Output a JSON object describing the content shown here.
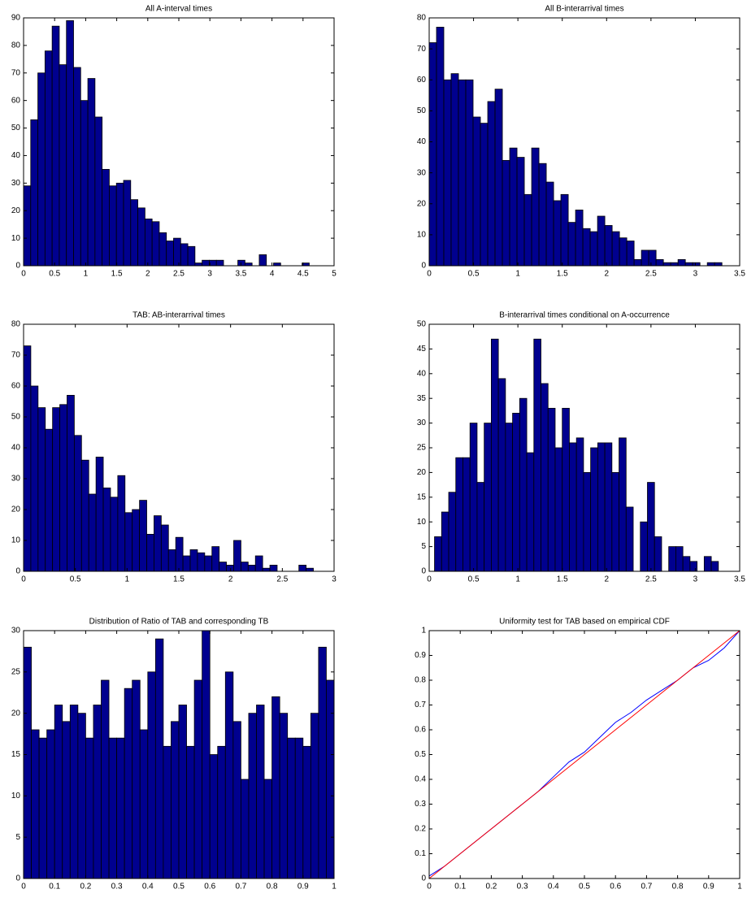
{
  "chart_data": [
    {
      "type": "histogram",
      "title": "All A-interval times",
      "color": "#00008f",
      "bins": [
        0,
        0.115,
        0.23,
        0.345,
        0.46,
        0.575,
        0.69,
        0.805,
        0.92,
        1.035,
        1.15,
        1.265,
        1.38,
        1.495,
        1.61,
        1.725,
        1.84,
        1.955,
        2.07,
        2.185,
        2.3,
        2.415,
        2.53,
        2.645,
        2.76,
        2.875,
        2.99,
        3.105,
        3.22,
        3.335,
        3.45,
        3.565,
        3.68,
        3.795,
        3.91,
        4.025,
        4.14,
        4.255,
        4.37,
        4.485,
        4.6
      ],
      "values": [
        29,
        53,
        70,
        78,
        87,
        73,
        89,
        72,
        60,
        68,
        54,
        35,
        29,
        30,
        31,
        24,
        21,
        17,
        16,
        12,
        9,
        10,
        8,
        7,
        1,
        2,
        2,
        2,
        0,
        0,
        2,
        1,
        0,
        4,
        0,
        1,
        0,
        0,
        0,
        1
      ],
      "xlim": [
        0,
        5
      ],
      "xticks": [
        0,
        0.5,
        1,
        1.5,
        2,
        2.5,
        3,
        3.5,
        4,
        4.5,
        5
      ],
      "ylim": [
        0,
        90
      ],
      "yticks": [
        0,
        10,
        20,
        30,
        40,
        50,
        60,
        70,
        80,
        90
      ]
    },
    {
      "type": "histogram",
      "title": "All B-interarrival times",
      "color": "#00008f",
      "bins": [
        0,
        0.0825,
        0.165,
        0.2475,
        0.33,
        0.4125,
        0.495,
        0.5775,
        0.66,
        0.7425,
        0.825,
        0.9075,
        0.99,
        1.0725,
        1.155,
        1.2375,
        1.32,
        1.4025,
        1.485,
        1.5675,
        1.65,
        1.7325,
        1.815,
        1.8975,
        1.98,
        2.0625,
        2.145,
        2.2275,
        2.31,
        2.3925,
        2.475,
        2.5575,
        2.64,
        2.7225,
        2.805,
        2.8875,
        2.97,
        3.0525,
        3.135,
        3.2175,
        3.3
      ],
      "values": [
        72,
        77,
        60,
        62,
        60,
        60,
        48,
        46,
        53,
        57,
        34,
        38,
        35,
        23,
        38,
        33,
        27,
        21,
        23,
        14,
        18,
        12,
        11,
        16,
        13,
        11,
        9,
        8,
        2,
        5,
        5,
        2,
        1,
        1,
        2,
        1,
        1,
        0,
        1,
        1
      ],
      "xlim": [
        0,
        3.5
      ],
      "xticks": [
        0,
        0.5,
        1,
        1.5,
        2,
        2.5,
        3,
        3.5
      ],
      "ylim": [
        0,
        80
      ],
      "yticks": [
        0,
        10,
        20,
        30,
        40,
        50,
        60,
        70,
        80
      ]
    },
    {
      "type": "histogram",
      "title": "TAB: AB-interarrival times",
      "color": "#00008f",
      "bins": [
        0,
        0.07,
        0.14,
        0.21,
        0.28,
        0.35,
        0.42,
        0.49,
        0.56,
        0.63,
        0.7,
        0.77,
        0.84,
        0.91,
        0.98,
        1.05,
        1.12,
        1.19,
        1.26,
        1.33,
        1.4,
        1.47,
        1.54,
        1.61,
        1.68,
        1.75,
        1.82,
        1.89,
        1.96,
        2.03,
        2.1,
        2.17,
        2.24,
        2.31,
        2.38,
        2.45,
        2.52,
        2.59,
        2.66,
        2.73,
        2.8
      ],
      "values": [
        73,
        60,
        53,
        46,
        53,
        54,
        57,
        44,
        36,
        25,
        37,
        27,
        24,
        31,
        19,
        20,
        23,
        12,
        18,
        15,
        7,
        11,
        5,
        7,
        6,
        5,
        8,
        3,
        2,
        10,
        3,
        2,
        5,
        1,
        2,
        0,
        0,
        0,
        2,
        1
      ],
      "xlim": [
        0,
        3
      ],
      "xticks": [
        0,
        0.5,
        1,
        1.5,
        2,
        2.5,
        3
      ],
      "ylim": [
        0,
        80
      ],
      "yticks": [
        0,
        10,
        20,
        30,
        40,
        50,
        60,
        70,
        80
      ]
    },
    {
      "type": "histogram",
      "title": "B-interarrival times conditional on A-occurrence",
      "color": "#00008f",
      "bins": [
        0.06,
        0.14,
        0.22,
        0.3,
        0.38,
        0.46,
        0.54,
        0.62,
        0.7,
        0.78,
        0.86,
        0.94,
        1.02,
        1.1,
        1.18,
        1.26,
        1.34,
        1.42,
        1.5,
        1.58,
        1.66,
        1.74,
        1.82,
        1.9,
        1.98,
        2.06,
        2.14,
        2.22,
        2.3,
        2.38,
        2.46,
        2.54,
        2.62,
        2.7,
        2.78,
        2.86,
        2.94,
        3.02,
        3.1,
        3.18,
        3.26
      ],
      "values": [
        7,
        12,
        16,
        23,
        23,
        30,
        18,
        30,
        47,
        39,
        30,
        32,
        35,
        24,
        47,
        38,
        33,
        25,
        33,
        26,
        27,
        20,
        25,
        26,
        26,
        20,
        27,
        13,
        0,
        10,
        18,
        7,
        0,
        5,
        5,
        3,
        2,
        0,
        3,
        2
      ],
      "xlim": [
        0,
        3.5
      ],
      "xticks": [
        0,
        0.5,
        1,
        1.5,
        2,
        2.5,
        3,
        3.5
      ],
      "ylim": [
        0,
        50
      ],
      "yticks": [
        0,
        5,
        10,
        15,
        20,
        25,
        30,
        35,
        40,
        45,
        50
      ]
    },
    {
      "type": "histogram",
      "title": "Distribution of Ratio of TAB and corresponding TB",
      "color": "#00008f",
      "bins": [
        0,
        0.025,
        0.05,
        0.075,
        0.1,
        0.125,
        0.15,
        0.175,
        0.2,
        0.225,
        0.25,
        0.275,
        0.3,
        0.325,
        0.35,
        0.375,
        0.4,
        0.425,
        0.45,
        0.475,
        0.5,
        0.525,
        0.55,
        0.575,
        0.6,
        0.625,
        0.65,
        0.675,
        0.7,
        0.725,
        0.75,
        0.775,
        0.8,
        0.825,
        0.85,
        0.875,
        0.9,
        0.925,
        0.95,
        0.975,
        1
      ],
      "values": [
        28,
        18,
        17,
        18,
        21,
        19,
        21,
        20,
        17,
        21,
        24,
        17,
        17,
        23,
        24,
        18,
        25,
        29,
        16,
        19,
        21,
        16,
        24,
        30,
        15,
        16,
        25,
        19,
        12,
        20,
        21,
        12,
        22,
        20,
        17,
        17,
        16,
        20,
        28,
        24
      ],
      "xlim": [
        0,
        1
      ],
      "xticks": [
        0,
        0.1,
        0.2,
        0.3,
        0.4,
        0.5,
        0.6,
        0.7,
        0.8,
        0.9,
        1
      ],
      "ylim": [
        0,
        30
      ],
      "yticks": [
        0,
        5,
        10,
        15,
        20,
        25,
        30
      ]
    },
    {
      "type": "line",
      "title": "Uniformity test for TAB based on empirical CDF",
      "x": [
        0,
        0.05,
        0.1,
        0.15,
        0.2,
        0.25,
        0.3,
        0.35,
        0.4,
        0.45,
        0.5,
        0.55,
        0.6,
        0.65,
        0.7,
        0.75,
        0.8,
        0.85,
        0.9,
        0.95,
        1
      ],
      "series": [
        {
          "color": "#0000ff",
          "values": [
            0.01,
            0.05,
            0.1,
            0.15,
            0.2,
            0.25,
            0.3,
            0.35,
            0.41,
            0.47,
            0.51,
            0.57,
            0.63,
            0.67,
            0.72,
            0.76,
            0.8,
            0.85,
            0.88,
            0.93,
            1
          ]
        },
        {
          "color": "#ff0000",
          "values": [
            0,
            0.05,
            0.1,
            0.15,
            0.2,
            0.25,
            0.3,
            0.35,
            0.4,
            0.45,
            0.5,
            0.55,
            0.6,
            0.65,
            0.7,
            0.75,
            0.8,
            0.85,
            0.9,
            0.95,
            1
          ]
        }
      ],
      "xlim": [
        0,
        1
      ],
      "xticks": [
        0,
        0.1,
        0.2,
        0.3,
        0.4,
        0.5,
        0.6,
        0.7,
        0.8,
        0.9,
        1
      ],
      "ylim": [
        0,
        1
      ],
      "yticks": [
        0,
        0.1,
        0.2,
        0.3,
        0.4,
        0.5,
        0.6,
        0.7,
        0.8,
        0.9,
        1
      ]
    }
  ]
}
